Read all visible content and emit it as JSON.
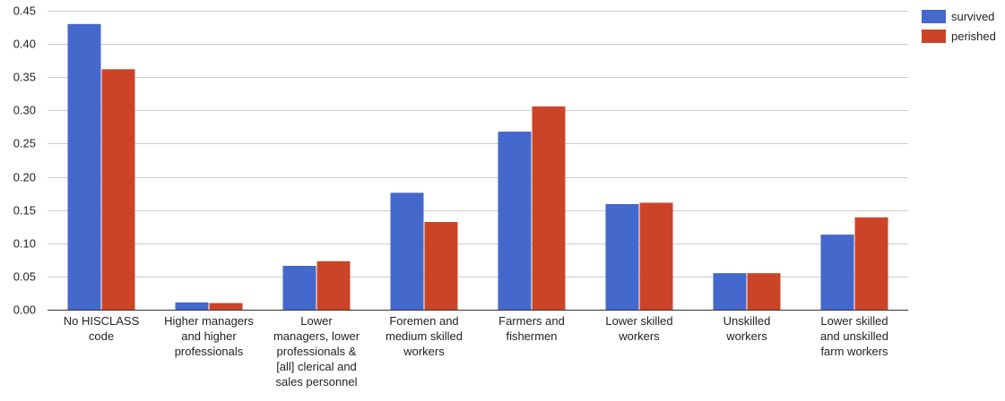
{
  "chart_data": {
    "type": "bar",
    "title": "",
    "xlabel": "",
    "ylabel": "",
    "ylim": [
      0,
      0.45
    ],
    "yticks": [
      "0.00",
      "0.05",
      "0.10",
      "0.15",
      "0.20",
      "0.25",
      "0.30",
      "0.35",
      "0.40",
      "0.45"
    ],
    "grid": true,
    "legend_position": "top-right",
    "categories": [
      [
        "No HISCLASS",
        "code"
      ],
      [
        "Higher managers",
        "and higher",
        "professionals"
      ],
      [
        "Lower",
        "managers, lower",
        "professionals &",
        "[all] clerical and",
        "sales personnel"
      ],
      [
        "Foremen and",
        "medium skilled",
        "workers"
      ],
      [
        "Farmers and",
        "fishermen"
      ],
      [
        "Lower skilled",
        "workers"
      ],
      [
        "Unskilled",
        "workers"
      ],
      [
        "Lower skilled",
        "and unskilled",
        "farm workers"
      ]
    ],
    "series": [
      {
        "name": "survived",
        "color": "#4468cb",
        "values": [
          0.43,
          0.011,
          0.066,
          0.176,
          0.268,
          0.159,
          0.055,
          0.113
        ]
      },
      {
        "name": "perished",
        "color": "#cc4427",
        "values": [
          0.362,
          0.01,
          0.073,
          0.132,
          0.306,
          0.161,
          0.055,
          0.139
        ]
      }
    ]
  }
}
